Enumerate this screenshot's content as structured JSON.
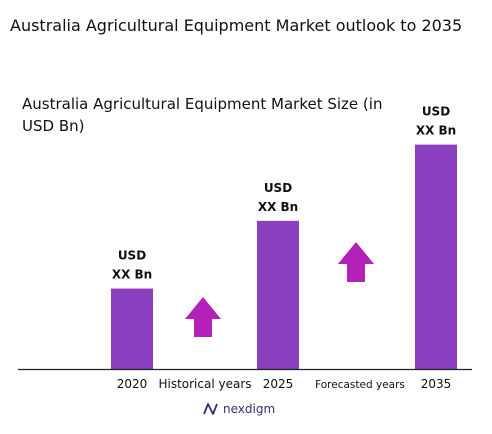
{
  "header": {
    "title": "Australia Agricultural Equipment Market outlook to 2035"
  },
  "chart_data": {
    "type": "bar",
    "title": "Australia Agricultural Equipment Market Size (in USD Bn)",
    "categories": [
      "2020",
      "2025",
      "2035"
    ],
    "values": [
      19,
      35,
      53
    ],
    "ylim": [
      0,
      60
    ],
    "bar_label_line1": "USD",
    "bar_label_line2": "XX Bn",
    "between_labels": [
      "Historical years",
      "Forecasted years"
    ],
    "bar_color": "#8a3fbe",
    "arrow_color": "#b321b8",
    "grid": false
  },
  "branding": {
    "logo_text": "nexdigm"
  }
}
